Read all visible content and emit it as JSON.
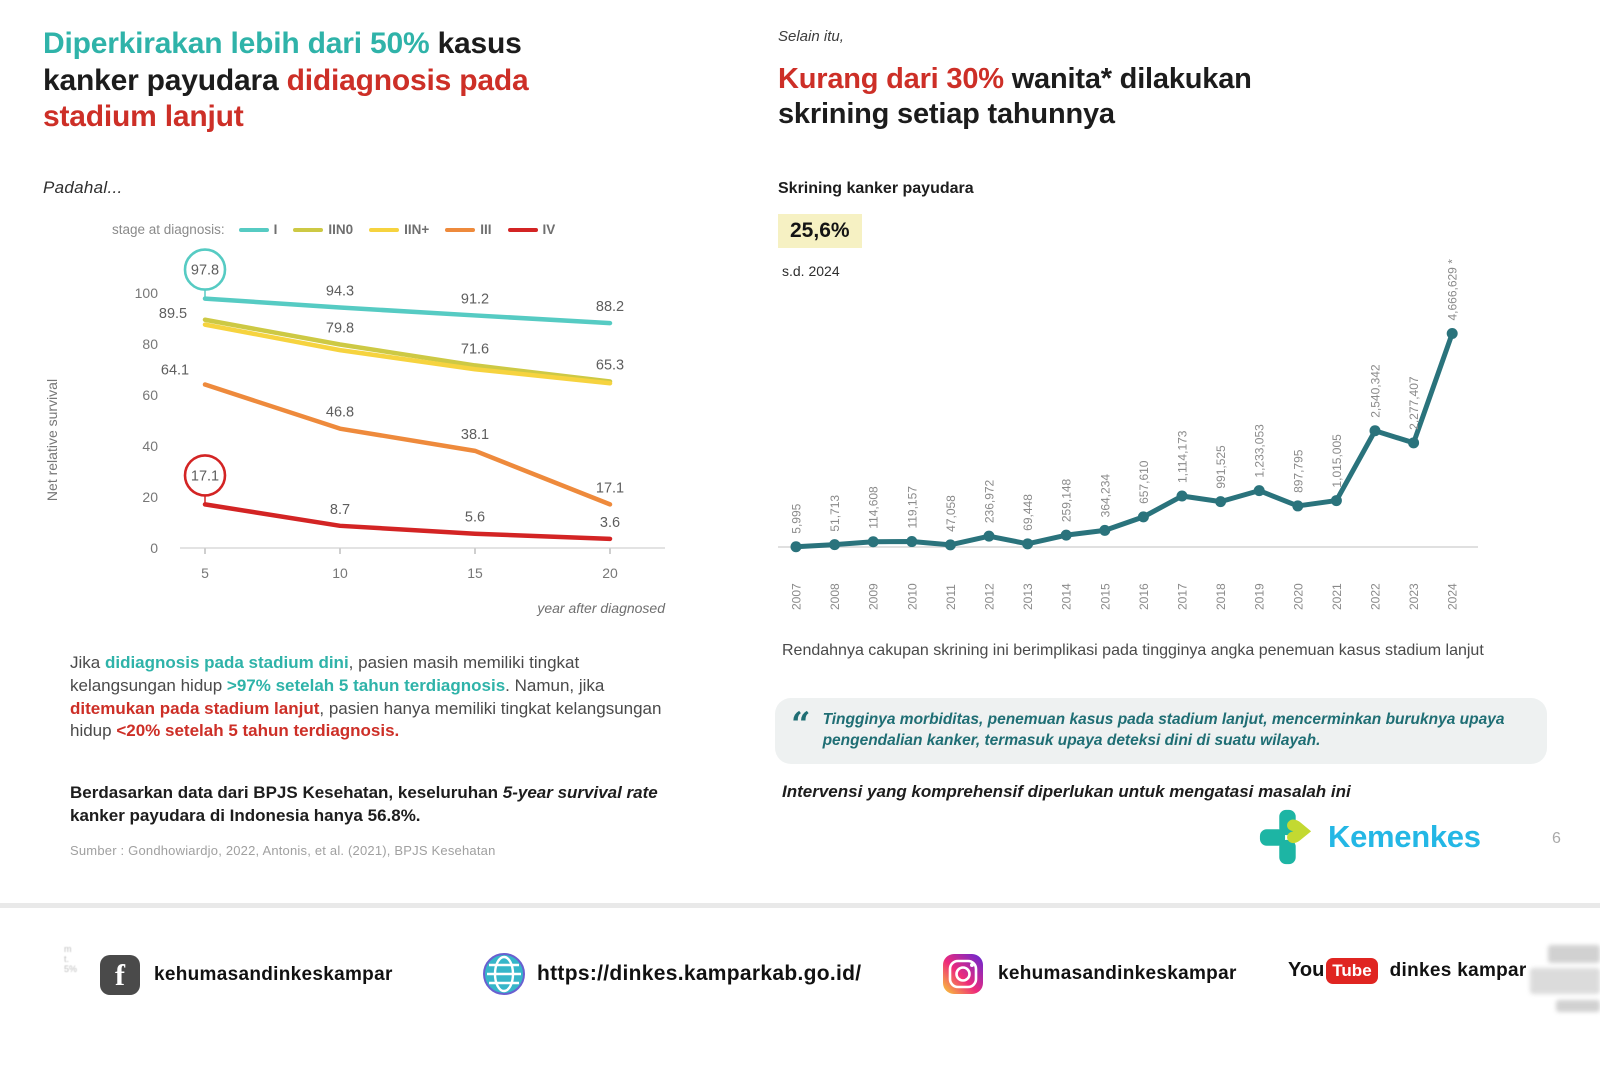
{
  "left": {
    "title_lines": [
      [
        {
          "t": "Diperkirakan lebih dari 50%",
          "c": "teal"
        },
        {
          "t": " kasus",
          "c": "dark"
        }
      ],
      [
        {
          "t": "kanker payudara ",
          "c": "dark"
        },
        {
          "t": "didiagnosis pada",
          "c": "red"
        }
      ],
      [
        {
          "t": "stadium lanjut",
          "c": "red"
        }
      ]
    ],
    "kicker": "Padahal...",
    "paragraph1": [
      {
        "t": "Jika ",
        "c": ""
      },
      {
        "t": "didiagnosis pada stadium dini",
        "c": "tealb"
      },
      {
        "t": ", pasien masih memiliki tingkat kelangsungan hidup ",
        "c": ""
      },
      {
        "t": ">97% setelah 5 tahun terdiagnosis",
        "c": "tealb"
      },
      {
        "t": ". Namun, jika ",
        "c": ""
      },
      {
        "t": "ditemukan pada stadium lanjut",
        "c": "redb"
      },
      {
        "t": ", pasien hanya memiliki tingkat kelangsungan hidup ",
        "c": ""
      },
      {
        "t": "<20% setelah 5 tahun terdiagnosis.",
        "c": "redb"
      }
    ],
    "paragraph2": [
      {
        "t": "Berdasarkan data dari BPJS Kesehatan, keseluruhan ",
        "c": "b"
      },
      {
        "t": "5-year survival rate",
        "c": "bi"
      },
      {
        "t": " kanker payudara di Indonesia hanya 56.8%.",
        "c": "b"
      }
    ],
    "source": "Sumber : Gondhowiardjo, 2022, Antonis, et al. (2021), BPJS Kesehatan"
  },
  "right": {
    "kicker": "Selain itu,",
    "title_lines": [
      [
        {
          "t": "Kurang dari 30%",
          "c": "red"
        },
        {
          "t": " wanita* dilakukan",
          "c": "dark"
        }
      ],
      [
        {
          "t": "skrining setiap tahunnya",
          "c": "dark"
        }
      ]
    ],
    "chart_label": "Skrining kanker payudara",
    "highlight": "25,6%",
    "subnote": "s.d. 2024",
    "note": "Rendahnya cakupan skrining ini berimplikasi pada tingginya angka penemuan kasus stadium lanjut",
    "quote_mark": "“",
    "quote": "Tingginya morbiditas, penemuan kasus pada stadium lanjut, mencerminkan buruknya upaya pengendalian kanker, termasuk upaya deteksi dini di suatu wilayah.",
    "conclusion": "Intervensi yang komprehensif diperlukan untuk mengatasi masalah ini",
    "brand": "Kemenkes",
    "page": "6"
  },
  "footer": {
    "facebook_label": "kehumasandinkeskampar",
    "facebook_f": "f",
    "website_label": "https://dinkes.kamparkab.go.id/",
    "instagram_label": "kehumasandinkeskampar",
    "youtube_you": "You",
    "youtube_tube": "Tube",
    "youtube_label": "dinkes kampar"
  },
  "colors": {
    "teal_accent": "#2fb3a9",
    "red_accent": "#cd2f27",
    "screening_line": "#2a737c",
    "highlight_bg": "#f6f1c3",
    "brand_blue": "#24b7e5",
    "logo_teal": "#1db5a4",
    "logo_lime": "#c3d931"
  },
  "chart_data": [
    {
      "type": "line",
      "title": "Net relative survival by stage at diagnosis",
      "legend_title": "stage at diagnosis:",
      "xlabel": "year after diagnosed",
      "ylabel": "Net relative survival",
      "x": [
        5,
        10,
        15,
        20
      ],
      "ylim": [
        0,
        100
      ],
      "yticks": [
        0,
        20,
        40,
        60,
        80,
        100
      ],
      "grid": false,
      "legend_position": "top",
      "series": [
        {
          "name": "I",
          "color": "#56cbc3",
          "values": [
            97.8,
            94.3,
            91.2,
            88.2
          ],
          "labeled": true,
          "circle_first": true
        },
        {
          "name": "IIN0",
          "color": "#cdc944",
          "values": [
            89.5,
            79.8,
            71.6,
            65.3
          ],
          "labeled": true,
          "circle_first": false
        },
        {
          "name": "IIN+",
          "color": "#f6d33f",
          "values": [
            87.6,
            77.6,
            70.1,
            64.6
          ],
          "labeled": false,
          "circle_first": false
        },
        {
          "name": "III",
          "color": "#ee8a3c",
          "values": [
            64.1,
            46.8,
            38.1,
            17.1
          ],
          "labeled": true,
          "circle_first": false
        },
        {
          "name": "IV",
          "color": "#d32424",
          "values": [
            17.1,
            8.7,
            5.6,
            3.6
          ],
          "labeled": true,
          "circle_first": true
        }
      ]
    },
    {
      "type": "line",
      "title": "Skrining kanker payudara",
      "x": [
        "2007",
        "2008",
        "2009",
        "2010",
        "2011",
        "2012",
        "2013",
        "2014",
        "2015",
        "2016",
        "2017",
        "2018",
        "2019",
        "2020",
        "2021",
        "2022",
        "2023",
        "2024"
      ],
      "values": [
        5995,
        51713,
        114608,
        119157,
        47058,
        236972,
        69448,
        259148,
        364234,
        657610,
        1114173,
        991525,
        1233053,
        897795,
        1015005,
        2540342,
        2277407,
        4666629
      ],
      "labels": [
        "5,995",
        "51,713",
        "114,608",
        "119,157",
        "47,058",
        "236,972",
        "69,448",
        "259,148",
        "364,234",
        "657,610",
        "1,114,173",
        "991,525",
        "1,233,053",
        "897,795",
        "1,015,005",
        "2,540,342",
        "2,277,407",
        "4,666,629 *"
      ],
      "ylim": [
        0,
        4700000
      ],
      "grid": false,
      "color": "#2a737c"
    }
  ]
}
